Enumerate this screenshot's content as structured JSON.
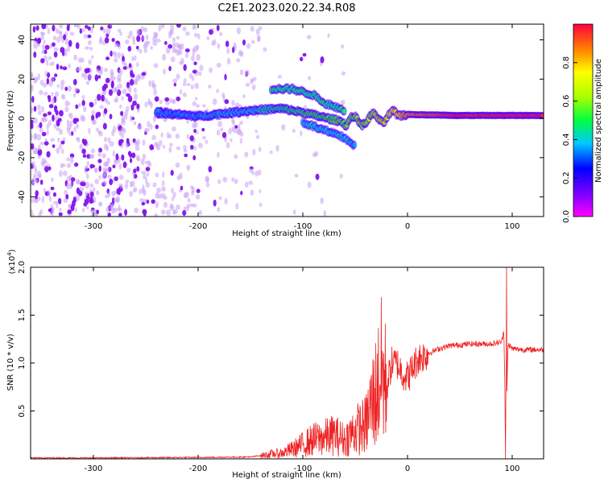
{
  "figure": {
    "title": "C2E1.2023.020.22.34.R08"
  },
  "colors": {
    "snr_line": "#ee2222",
    "axis": "#000000",
    "background": "#ffffff"
  },
  "chart_data": [
    {
      "type": "heatmap",
      "title": "C2E1.2023.020.22.34.R08",
      "xlabel": "Height of straight line (km)",
      "ylabel": "Frequency (Hz)",
      "xlim": [
        -360,
        130
      ],
      "ylim": [
        -50,
        48
      ],
      "xticks": [
        -300,
        -200,
        -100,
        0,
        100
      ],
      "yticks": [
        -40,
        -20,
        0,
        20,
        40
      ],
      "grid": false,
      "colorbar": {
        "label": "Normalized spectral amplitude",
        "range": [
          0,
          1
        ],
        "ticks": [
          "0.0",
          "0.2",
          "0.4",
          "0.6",
          "0.8"
        ],
        "colormap": "rainbow"
      },
      "features": [
        {
          "name": "carrier",
          "x": [
            -240,
            -200,
            -150,
            -120,
            -100,
            -60,
            -30,
            0,
            50,
            90,
            130
          ],
          "y": [
            3,
            1,
            4,
            5,
            3,
            -2,
            0,
            2,
            1.5,
            1.5,
            1.5
          ],
          "amplitude": [
            0.35,
            0.35,
            0.4,
            0.45,
            0.5,
            0.55,
            0.6,
            0.85,
            0.95,
            0.95,
            0.95
          ]
        },
        {
          "name": "upper-branch",
          "x": [
            -130,
            -110,
            -90,
            -80,
            -60
          ],
          "y": [
            15,
            15,
            12,
            8,
            4
          ],
          "amplitude": [
            0.45,
            0.45,
            0.45,
            0.45,
            0.45
          ]
        },
        {
          "name": "lower-branch",
          "x": [
            -100,
            -80,
            -60,
            -50
          ],
          "y": [
            -2,
            -6,
            -10,
            -14
          ],
          "amplitude": [
            0.4,
            0.4,
            0.4,
            0.35
          ]
        }
      ]
    },
    {
      "type": "line",
      "xlabel": "Height of straight line (km)",
      "ylabel": "SNR (10 * v/v)",
      "y_multiplier": "(x10",
      "y_multiplier_exp": "4",
      "y_multiplier_close": ")",
      "xlim": [
        -360,
        130
      ],
      "ylim": [
        0,
        2.0
      ],
      "xticks": [
        -300,
        -200,
        -100,
        0,
        100
      ],
      "yticks": [
        "0.5",
        "1.0",
        "1.5",
        "2.0"
      ],
      "ytick_values": [
        0.5,
        1.0,
        1.5,
        2.0
      ],
      "grid": false,
      "series": [
        {
          "x": [
            -360,
            -300,
            -200,
            -150,
            -130,
            -120,
            -110,
            -100,
            -90,
            -80,
            -70,
            -60,
            -50,
            -40,
            -35,
            -30,
            -25,
            -20,
            -15,
            -10,
            -5,
            0,
            10,
            20,
            30,
            40,
            60,
            80,
            90,
            92,
            94,
            96,
            100,
            110,
            120,
            130
          ],
          "y": [
            0.01,
            0.01,
            0.015,
            0.02,
            0.05,
            0.06,
            0.1,
            0.15,
            0.2,
            0.22,
            0.25,
            0.2,
            0.3,
            0.35,
            0.55,
            0.7,
            0.9,
            0.75,
            1.0,
            1.0,
            0.9,
            0.85,
            1.05,
            1.1,
            1.15,
            1.18,
            1.2,
            1.2,
            1.22,
            1.35,
            0.25,
            1.2,
            1.15,
            1.14,
            1.14,
            1.14
          ]
        }
      ]
    }
  ]
}
